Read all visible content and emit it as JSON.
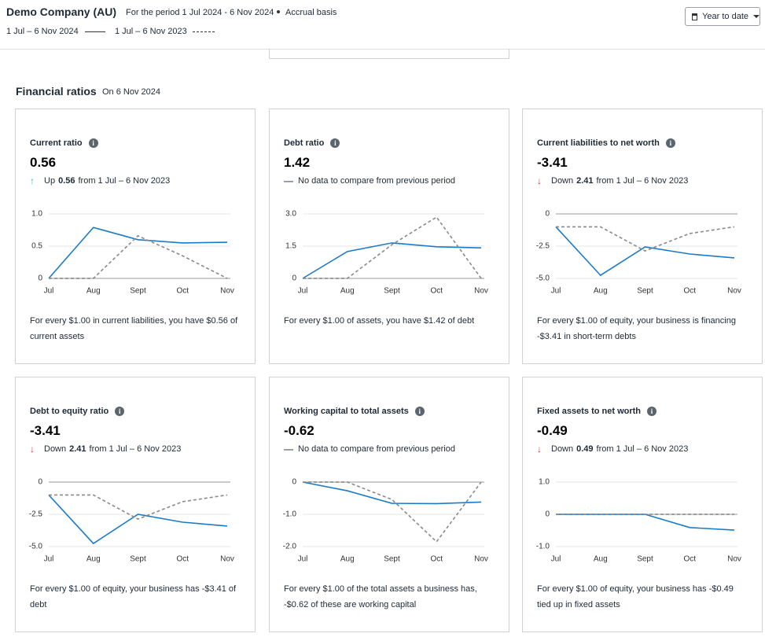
{
  "header": {
    "company": "Demo Company (AU)",
    "period": "For the period 1 Jul 2024 - 6 Nov 2024",
    "basis": "Accrual basis",
    "legend": {
      "current": "1 Jul – 6 Nov 2024",
      "previous": "1 Jul – 6 Nov 2023"
    },
    "button": "Year to date"
  },
  "section": {
    "title": "Financial ratios",
    "date": "On 6 Nov 2024"
  },
  "cards": [
    {
      "title": "Current ratio",
      "value": "0.56",
      "trend": "up",
      "change": {
        "direction": "Up",
        "amount": "0.56",
        "text": "from 1 Jul – 6 Nov 2023"
      },
      "description": "For every $1.00 in current liabilities, you have $0.56 of current assets",
      "chart_data": {
        "type": "line",
        "categories": [
          "Jul",
          "Aug",
          "Sept",
          "Oct",
          "Nov"
        ],
        "ylim": [
          0,
          1
        ],
        "yticks": [
          0,
          0.5,
          {
            "value": 1,
            "label": "1.0"
          }
        ],
        "series": [
          {
            "color": "#1a7bc9",
            "dashed": false,
            "values": [
              0,
              0.79,
              0.6,
              0.55,
              0.56
            ]
          },
          {
            "color": "#8a8a8a",
            "dashed": true,
            "values": [
              0,
              0,
              0.66,
              0.35,
              0
            ]
          }
        ]
      }
    },
    {
      "title": "Debt ratio",
      "value": "1.42",
      "trend": "flat",
      "change": {
        "text": "No data to compare from previous period"
      },
      "description": "For every $1.00 of assets, you have $1.42 of debt",
      "chart_data": {
        "type": "line",
        "categories": [
          "Jul",
          "Aug",
          "Sept",
          "Oct",
          "Nov"
        ],
        "ylim": [
          0,
          3
        ],
        "yticks": [
          0,
          1.5,
          {
            "value": 3,
            "label": "3.0"
          }
        ],
        "series": [
          {
            "color": "#1a7bc9",
            "dashed": false,
            "values": [
              0,
              1.25,
              1.65,
              1.47,
              1.42
            ]
          },
          {
            "color": "#8a8a8a",
            "dashed": true,
            "values": [
              0,
              0,
              1.57,
              2.85,
              0
            ]
          }
        ]
      }
    },
    {
      "title": "Current liabilities to net worth",
      "value": "-3.41",
      "trend": "down",
      "change": {
        "direction": "Down",
        "amount": "2.41",
        "text": "from 1 Jul – 6 Nov 2023"
      },
      "description": "For every $1.00 of equity, your business is financing -$3.41 in short-term debts",
      "chart_data": {
        "type": "line",
        "categories": [
          "Jul",
          "Aug",
          "Sept",
          "Oct",
          "Nov"
        ],
        "ylim": [
          -5,
          0
        ],
        "yticks": [
          {
            "value": -5,
            "label": "-5.0"
          },
          -2.5,
          0
        ],
        "series": [
          {
            "color": "#1a7bc9",
            "dashed": false,
            "values": [
              -1,
              -4.76,
              -2.56,
              -3.11,
              -3.41
            ]
          },
          {
            "color": "#8a8a8a",
            "dashed": true,
            "values": [
              -1,
              -1,
              -2.87,
              -1.52,
              -1
            ]
          }
        ]
      }
    },
    {
      "title": "Debt to equity ratio",
      "value": "-3.41",
      "trend": "down",
      "change": {
        "direction": "Down",
        "amount": "2.41",
        "text": "from 1 Jul – 6 Nov 2023"
      },
      "description": "For every $1.00 of equity, your business has -$3.41 of debt",
      "chart_data": {
        "type": "line",
        "categories": [
          "Jul",
          "Aug",
          "Sept",
          "Oct",
          "Nov"
        ],
        "ylim": [
          -5,
          0
        ],
        "yticks": [
          {
            "value": -5,
            "label": "-5.0"
          },
          -2.5,
          0
        ],
        "series": [
          {
            "color": "#1a7bc9",
            "dashed": false,
            "values": [
              -1,
              -4.76,
              -2.5,
              -3.11,
              -3.41
            ]
          },
          {
            "color": "#8a8a8a",
            "dashed": true,
            "values": [
              -1,
              -1,
              -2.87,
              -1.52,
              -1
            ]
          }
        ]
      }
    },
    {
      "title": "Working capital to total assets",
      "value": "-0.62",
      "trend": "flat",
      "change": {
        "text": "No data to compare from previous period"
      },
      "description": "For every $1.00 of the total assets a business has, -$0.62 of these are working capital",
      "chart_data": {
        "type": "line",
        "categories": [
          "Jul",
          "Aug",
          "Sept",
          "Oct",
          "Nov"
        ],
        "ylim": [
          -2,
          0
        ],
        "yticks": [
          {
            "value": -2,
            "label": "-2.0"
          },
          {
            "value": -1,
            "label": "-1.0"
          },
          0
        ],
        "series": [
          {
            "color": "#1a7bc9",
            "dashed": false,
            "values": [
              0,
              -0.27,
              -0.66,
              -0.67,
              -0.62
            ]
          },
          {
            "color": "#8a8a8a",
            "dashed": true,
            "values": [
              0,
              0,
              -0.54,
              -1.85,
              0
            ]
          }
        ]
      }
    },
    {
      "title": "Fixed assets to net worth",
      "value": "-0.49",
      "trend": "down",
      "change": {
        "direction": "Down",
        "amount": "0.49",
        "text": "from 1 Jul – 6 Nov 2023"
      },
      "description": "For every $1.00 of equity, your business has -$0.49 tied up in fixed assets",
      "chart_data": {
        "type": "line",
        "categories": [
          "Jul",
          "Aug",
          "Sept",
          "Oct",
          "Nov"
        ],
        "ylim": [
          -1,
          1
        ],
        "yticks": [
          {
            "value": -1,
            "label": "-1.0"
          },
          0,
          {
            "value": 1,
            "label": "1.0"
          }
        ],
        "series": [
          {
            "color": "#1a7bc9",
            "dashed": false,
            "values": [
              0,
              0,
              0,
              -0.41,
              -0.49
            ]
          },
          {
            "color": "#8a8a8a",
            "dashed": true,
            "values": [
              0,
              0,
              0,
              0,
              0
            ]
          }
        ]
      }
    }
  ]
}
